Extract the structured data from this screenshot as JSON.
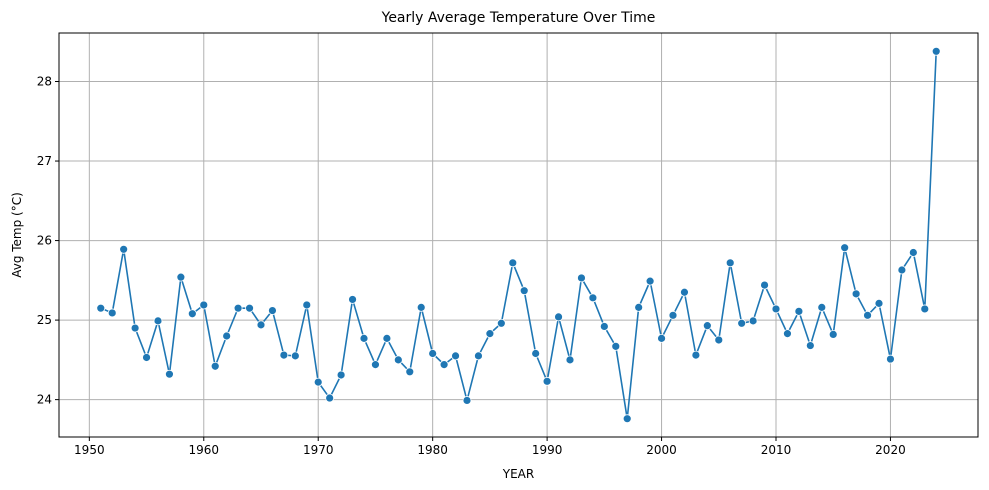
{
  "chart_data": {
    "type": "line",
    "title": "Yearly Average Temperature Over Time",
    "xlabel": "YEAR",
    "ylabel": "Avg Temp (°C)",
    "xlim": [
      1947.35,
      2027.65
    ],
    "ylim": [
      23.53,
      28.61
    ],
    "xticks": [
      1950,
      1960,
      1970,
      1980,
      1990,
      2000,
      2010,
      2020
    ],
    "yticks": [
      24,
      25,
      26,
      27,
      28
    ],
    "grid": true,
    "color": "#1f77b4",
    "marker": "circle",
    "x": [
      1951,
      1952,
      1953,
      1954,
      1955,
      1956,
      1957,
      1958,
      1959,
      1960,
      1961,
      1962,
      1963,
      1964,
      1965,
      1966,
      1967,
      1968,
      1969,
      1970,
      1971,
      1972,
      1973,
      1974,
      1975,
      1976,
      1977,
      1978,
      1979,
      1980,
      1981,
      1982,
      1983,
      1984,
      1985,
      1986,
      1987,
      1988,
      1989,
      1990,
      1991,
      1992,
      1993,
      1994,
      1995,
      1996,
      1997,
      1998,
      1999,
      2000,
      2001,
      2002,
      2003,
      2004,
      2005,
      2006,
      2007,
      2008,
      2009,
      2010,
      2011,
      2012,
      2013,
      2014,
      2015,
      2016,
      2017,
      2018,
      2019,
      2020,
      2021,
      2022,
      2023,
      2024
    ],
    "values": [
      25.15,
      25.09,
      25.89,
      24.9,
      24.53,
      24.99,
      24.32,
      25.54,
      25.08,
      25.19,
      24.42,
      24.8,
      25.15,
      25.15,
      24.94,
      25.12,
      24.56,
      24.55,
      25.19,
      24.22,
      24.02,
      24.31,
      25.26,
      24.77,
      24.44,
      24.77,
      24.5,
      24.35,
      25.16,
      24.58,
      24.44,
      24.55,
      23.99,
      24.55,
      24.83,
      24.96,
      25.72,
      25.37,
      24.58,
      24.23,
      25.04,
      24.5,
      25.53,
      25.28,
      24.92,
      24.67,
      23.76,
      25.16,
      25.49,
      24.77,
      25.06,
      25.35,
      24.56,
      24.93,
      24.75,
      25.72,
      24.96,
      24.99,
      25.44,
      25.14,
      24.83,
      25.11,
      24.68,
      25.16,
      24.82,
      25.91,
      25.33,
      25.06,
      25.21,
      24.51,
      25.63,
      25.85,
      25.14,
      28.38
    ]
  }
}
